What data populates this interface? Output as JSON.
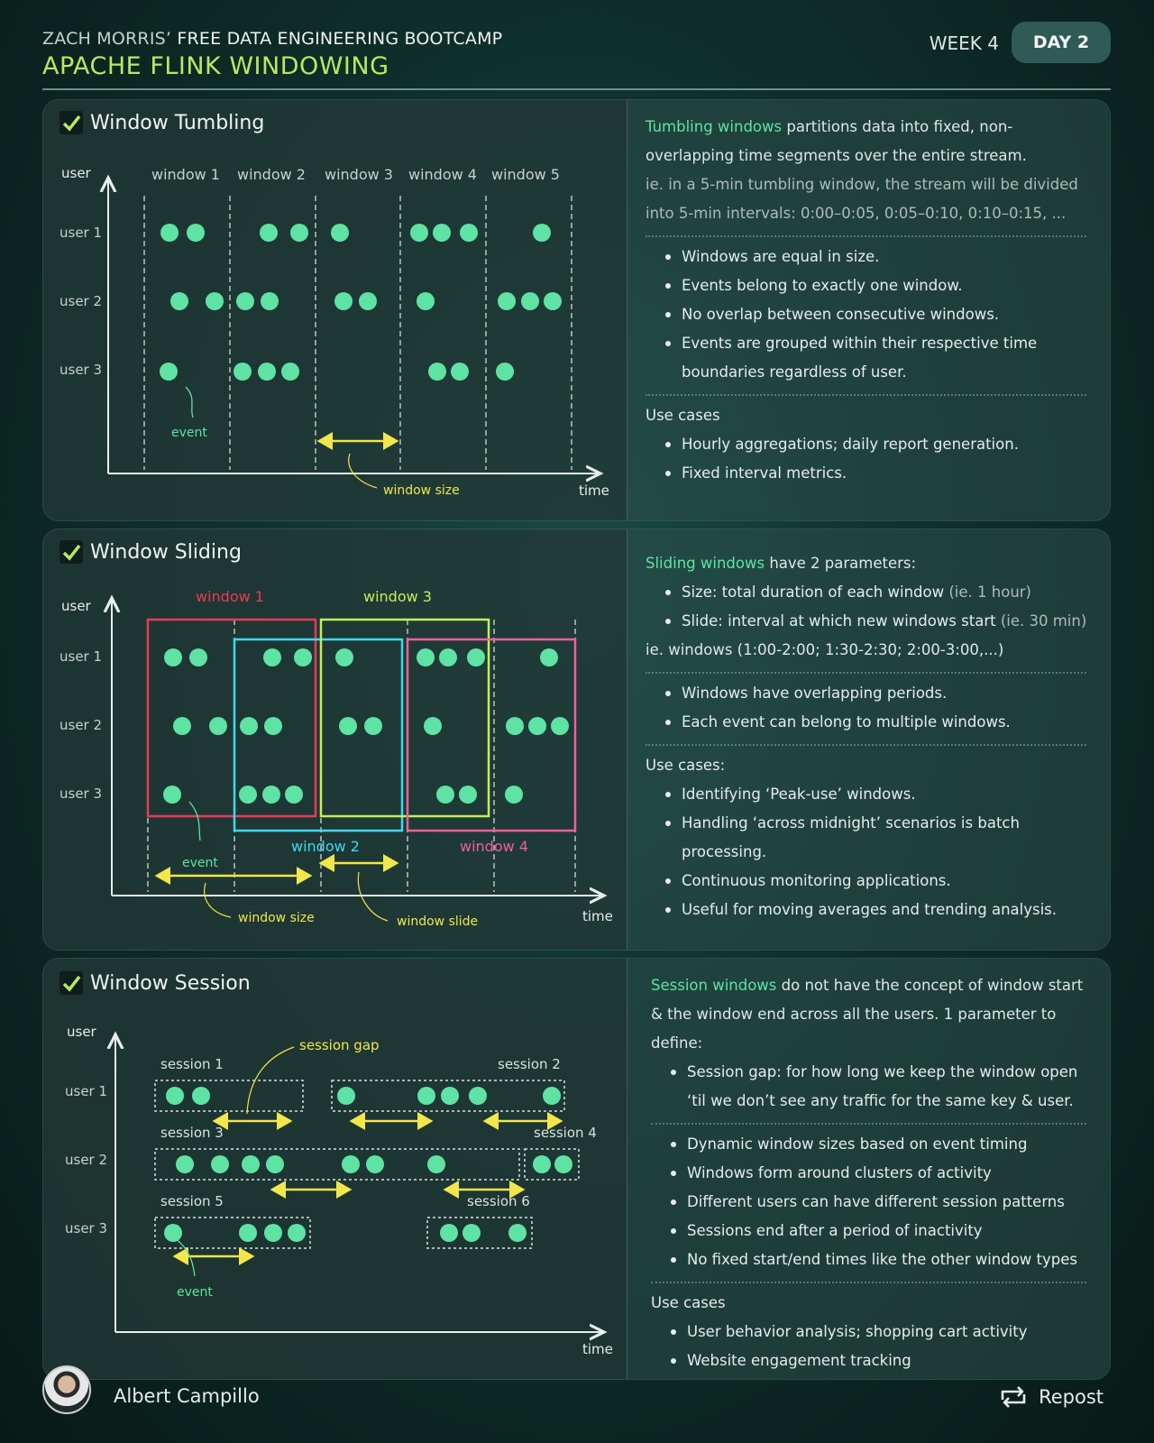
{
  "header": {
    "author": "ZACH MORRIS’",
    "course": "FREE DATA ENGINEERING BOOTCAMP",
    "title": "APACHE FLINK WINDOWING",
    "week": "WEEK 4",
    "day": "DAY 2"
  },
  "tumbling": {
    "title": "Window Tumbling",
    "axis": {
      "y": "user",
      "x": "time"
    },
    "users": [
      "user 1",
      "user 2",
      "user 3"
    ],
    "windows": [
      "window 1",
      "window 2",
      "window 3",
      "window 4",
      "window 5"
    ],
    "event_label": "event",
    "size_label": "window size",
    "intro_hl": "Tumbling windows",
    "intro_rest": " partitions data into fixed, non-overlapping time segments over the entire stream.",
    "example": "ie.  in a 5-min tumbling window, the stream will be divided into 5-min intervals: 0:00–0:05, 0:05–0:10, 0:10–0:15, ...",
    "bullets": [
      "Windows are equal in size.",
      "Events belong to exactly one window.",
      "No overlap between consecutive windows.",
      "Events are grouped within their respective time boundaries regardless of user."
    ],
    "usecases_title": "Use cases",
    "usecases": [
      "Hourly aggregations; daily report generation.",
      "Fixed interval metrics."
    ]
  },
  "sliding": {
    "title": "Window Sliding",
    "axis": {
      "y": "user",
      "x": "time"
    },
    "users": [
      "user 1",
      "user 2",
      "user 3"
    ],
    "windows": [
      "window 1",
      "window 2",
      "window 3",
      "window 4"
    ],
    "event_label": "event",
    "size_label": "window size",
    "slide_label": "window slide",
    "intro_hl": "Sliding windows",
    "intro_rest": " have 2 parameters:",
    "params": [
      {
        "text": "Size: total duration of each window ",
        "note": "(ie. 1 hour)"
      },
      {
        "text": "Slide: interval at which new windows start ",
        "note": "(ie. 30 min)"
      }
    ],
    "example": "ie. windows (1:00-2:00; 1:30-2:30; 2:00-3:00,...)",
    "bullets": [
      "Windows have overlapping periods.",
      "Each event can belong to multiple windows."
    ],
    "usecases_title": "Use cases:",
    "usecases": [
      "Identifying ‘Peak-use’ windows.",
      "Handling ‘across midnight’ scenarios is batch processing.",
      "Continuous monitoring applications.",
      "Useful for moving averages and trending analysis."
    ]
  },
  "session": {
    "title": "Window Session",
    "axis": {
      "y": "user",
      "x": "time"
    },
    "users": [
      "user 1",
      "user 2",
      "user 3"
    ],
    "sessions": [
      "session 1",
      "session 2",
      "session 3",
      "session 4",
      "session 5",
      "session 6"
    ],
    "gap_label": "session gap",
    "event_label": "event",
    "intro_hl": "Session windows",
    "intro_rest": " do not have the concept of window start & the window end across all the users. 1 parameter to define:",
    "param": "Session gap: for how long we keep the window open ‘til we don’t see any traffic for the same key & user.",
    "bullets": [
      "Dynamic window sizes based on event timing",
      "Windows form around clusters of activity",
      "Different users can have different session patterns",
      "Sessions end after a period of inactivity",
      "No fixed start/end times like the other window types"
    ],
    "usecases_title": "Use cases",
    "usecases": [
      "User behavior analysis; shopping cart activity",
      "Website engagement tracking"
    ]
  },
  "footer": {
    "name": "Albert Campillo",
    "repost": "Repost"
  },
  "colors": {
    "dot": "#5ee3a4",
    "yellow": "#f2e64a",
    "red": "#ea3a5b",
    "cyan": "#3fd9ee",
    "lime": "#c3ee5a",
    "pink": "#f0609a"
  }
}
